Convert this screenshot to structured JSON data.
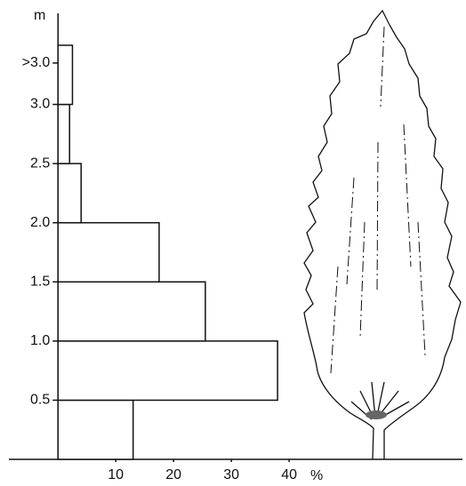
{
  "chart_data": {
    "type": "histogram",
    "orientation": "horizontal",
    "y_label": "m",
    "x_label": "%",
    "bins": [
      0,
      0.5,
      1.0,
      1.5,
      2.0,
      2.5,
      3.0,
      3.5
    ],
    "values": [
      13,
      38,
      25.5,
      17.5,
      4,
      2,
      2.5
    ],
    "color": "#ffffff",
    "xlim": [
      -8.5,
      70
    ],
    "xticks": [
      10,
      20,
      30,
      40
    ],
    "ylim": [
      0,
      3.77
    ],
    "yticks": [
      0.5,
      {
        "value": 1.0,
        "label": "1.0"
      },
      1.5,
      {
        "value": 2.0,
        "label": "2.0"
      },
      2.5,
      {
        "value": 3.0,
        "label": "3.0"
      },
      {
        "value": 3.35,
        "label": ">3.0"
      }
    ],
    "grid": false
  }
}
